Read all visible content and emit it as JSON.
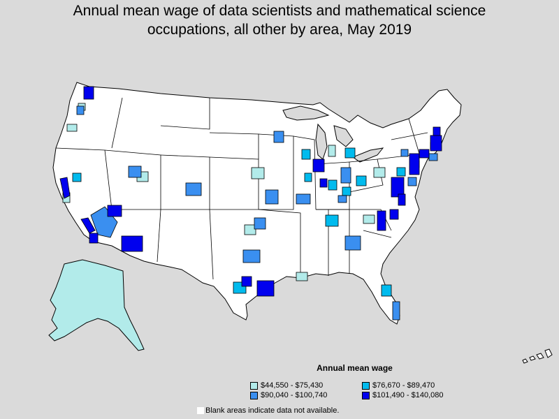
{
  "title_line1": "Annual mean wage of data scientists and mathematical science",
  "title_line2": "occupations, all other by area, May 2019",
  "legend": {
    "title": "Annual mean wage",
    "items": [
      {
        "label": "$44,550 - $75,430",
        "color": "#b2ebea"
      },
      {
        "label": "$76,670 - $89,470",
        "color": "#00bbee"
      },
      {
        "label": "$90,040 - $100,740",
        "color": "#3a8ff0"
      },
      {
        "label": "$101,490 - $140,080",
        "color": "#0000ee"
      }
    ]
  },
  "note": "Blank areas indicate data not available.",
  "colors": {
    "background": "#dadada",
    "blank": "#ffffff",
    "border": "#000000"
  }
}
